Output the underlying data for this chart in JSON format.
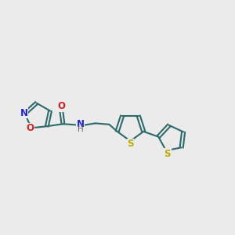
{
  "bg_color": "#ebebeb",
  "bond_color": "#2d6b6b",
  "bond_width": 1.5,
  "N_color": "#2222cc",
  "O_color": "#cc2222",
  "S_color": "#bbaa00",
  "figsize": [
    3.0,
    3.0
  ],
  "dpi": 100,
  "xlim": [
    0,
    10
  ],
  "ylim": [
    2.5,
    7.5
  ]
}
